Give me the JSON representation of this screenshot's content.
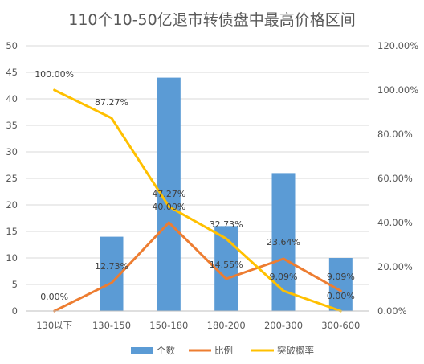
{
  "chart_data": {
    "type": "bar",
    "title": "110个10-50亿退市转债盘中最高价格区间",
    "categories": [
      "130以下",
      "130-150",
      "150-180",
      "180-200",
      "200-300",
      "300-600"
    ],
    "series": [
      {
        "name": "个数",
        "type": "bar",
        "axis": "left",
        "color": "#5b9bd5",
        "values": [
          0,
          14,
          44,
          16,
          26,
          10
        ]
      },
      {
        "name": "比例",
        "type": "line",
        "axis": "right",
        "color": "#ed7d31",
        "values": [
          0,
          0.1273,
          0.4,
          0.1455,
          0.2364,
          0.0909
        ],
        "labels": [
          "0.00%",
          "12.73%",
          "40.00%",
          "14.55%",
          "23.64%",
          "9.09%"
        ]
      },
      {
        "name": "突破概率",
        "type": "line",
        "axis": "right",
        "color": "#ffc000",
        "values": [
          1.0,
          0.8727,
          0.4727,
          0.3273,
          0.0909,
          0.0
        ],
        "labels": [
          "100.00%",
          "87.27%",
          "47.27%",
          "32.73%",
          "9.09%",
          "0.00%"
        ]
      }
    ],
    "y_left": {
      "ylim": [
        0,
        50
      ],
      "ticks": [
        "0",
        "5",
        "10",
        "15",
        "20",
        "25",
        "30",
        "35",
        "40",
        "45",
        "50"
      ]
    },
    "y_right": {
      "ylim": [
        0,
        1.2
      ],
      "ticks": [
        "0.00%",
        "20.00%",
        "40.00%",
        "60.00%",
        "80.00%",
        "100.00%",
        "120.00%"
      ]
    },
    "grid": true,
    "legend": "bottom"
  }
}
